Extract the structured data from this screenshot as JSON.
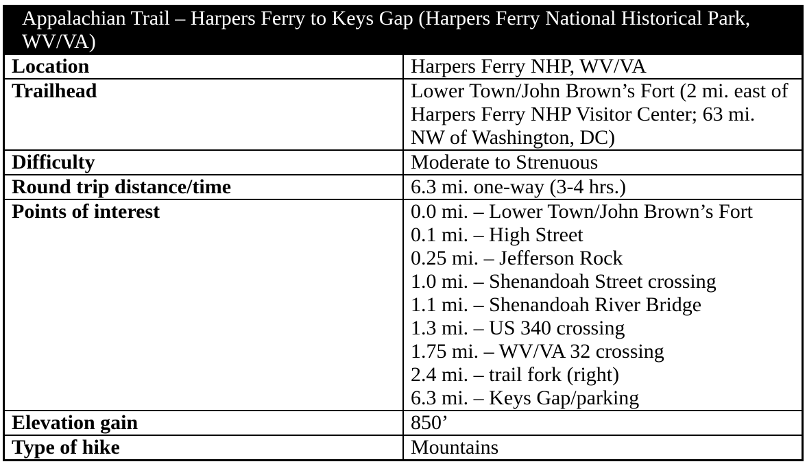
{
  "table": {
    "title": "Appalachian Trail – Harpers Ferry to Keys Gap (Harpers Ferry National Historical Park, WV/VA)",
    "rows": [
      {
        "label": "Location",
        "value": "Harpers Ferry NHP, WV/VA"
      },
      {
        "label": "Trailhead",
        "value": "Lower Town/John Brown’s Fort (2 mi. east of Harpers Ferry NHP Visitor Center; 63 mi. NW of Washington, DC)"
      },
      {
        "label": "Difficulty",
        "value": "Moderate to Strenuous"
      },
      {
        "label": "Round trip distance/time",
        "value": "6.3 mi. one-way (3-4 hrs.)"
      },
      {
        "label": "Points of interest",
        "lines": [
          "0.0 mi. – Lower Town/John Brown’s Fort",
          "0.1 mi. – High Street",
          "0.25 mi. – Jefferson Rock",
          "1.0 mi. – Shenandoah Street crossing",
          "1.1 mi. – Shenandoah River Bridge",
          "1.3 mi. – US 340 crossing",
          "1.75 mi. – WV/VA 32 crossing",
          "2.4 mi. – trail fork (right)",
          "6.3 mi. – Keys Gap/parking"
        ]
      },
      {
        "label": "Elevation gain",
        "value": "850’"
      },
      {
        "label": "Type of hike",
        "value": "Mountains"
      }
    ],
    "colors": {
      "header_bg": "#000000",
      "header_text": "#ffffff",
      "border": "#000000",
      "body_text": "#000000",
      "page_bg": "#ffffff"
    }
  }
}
